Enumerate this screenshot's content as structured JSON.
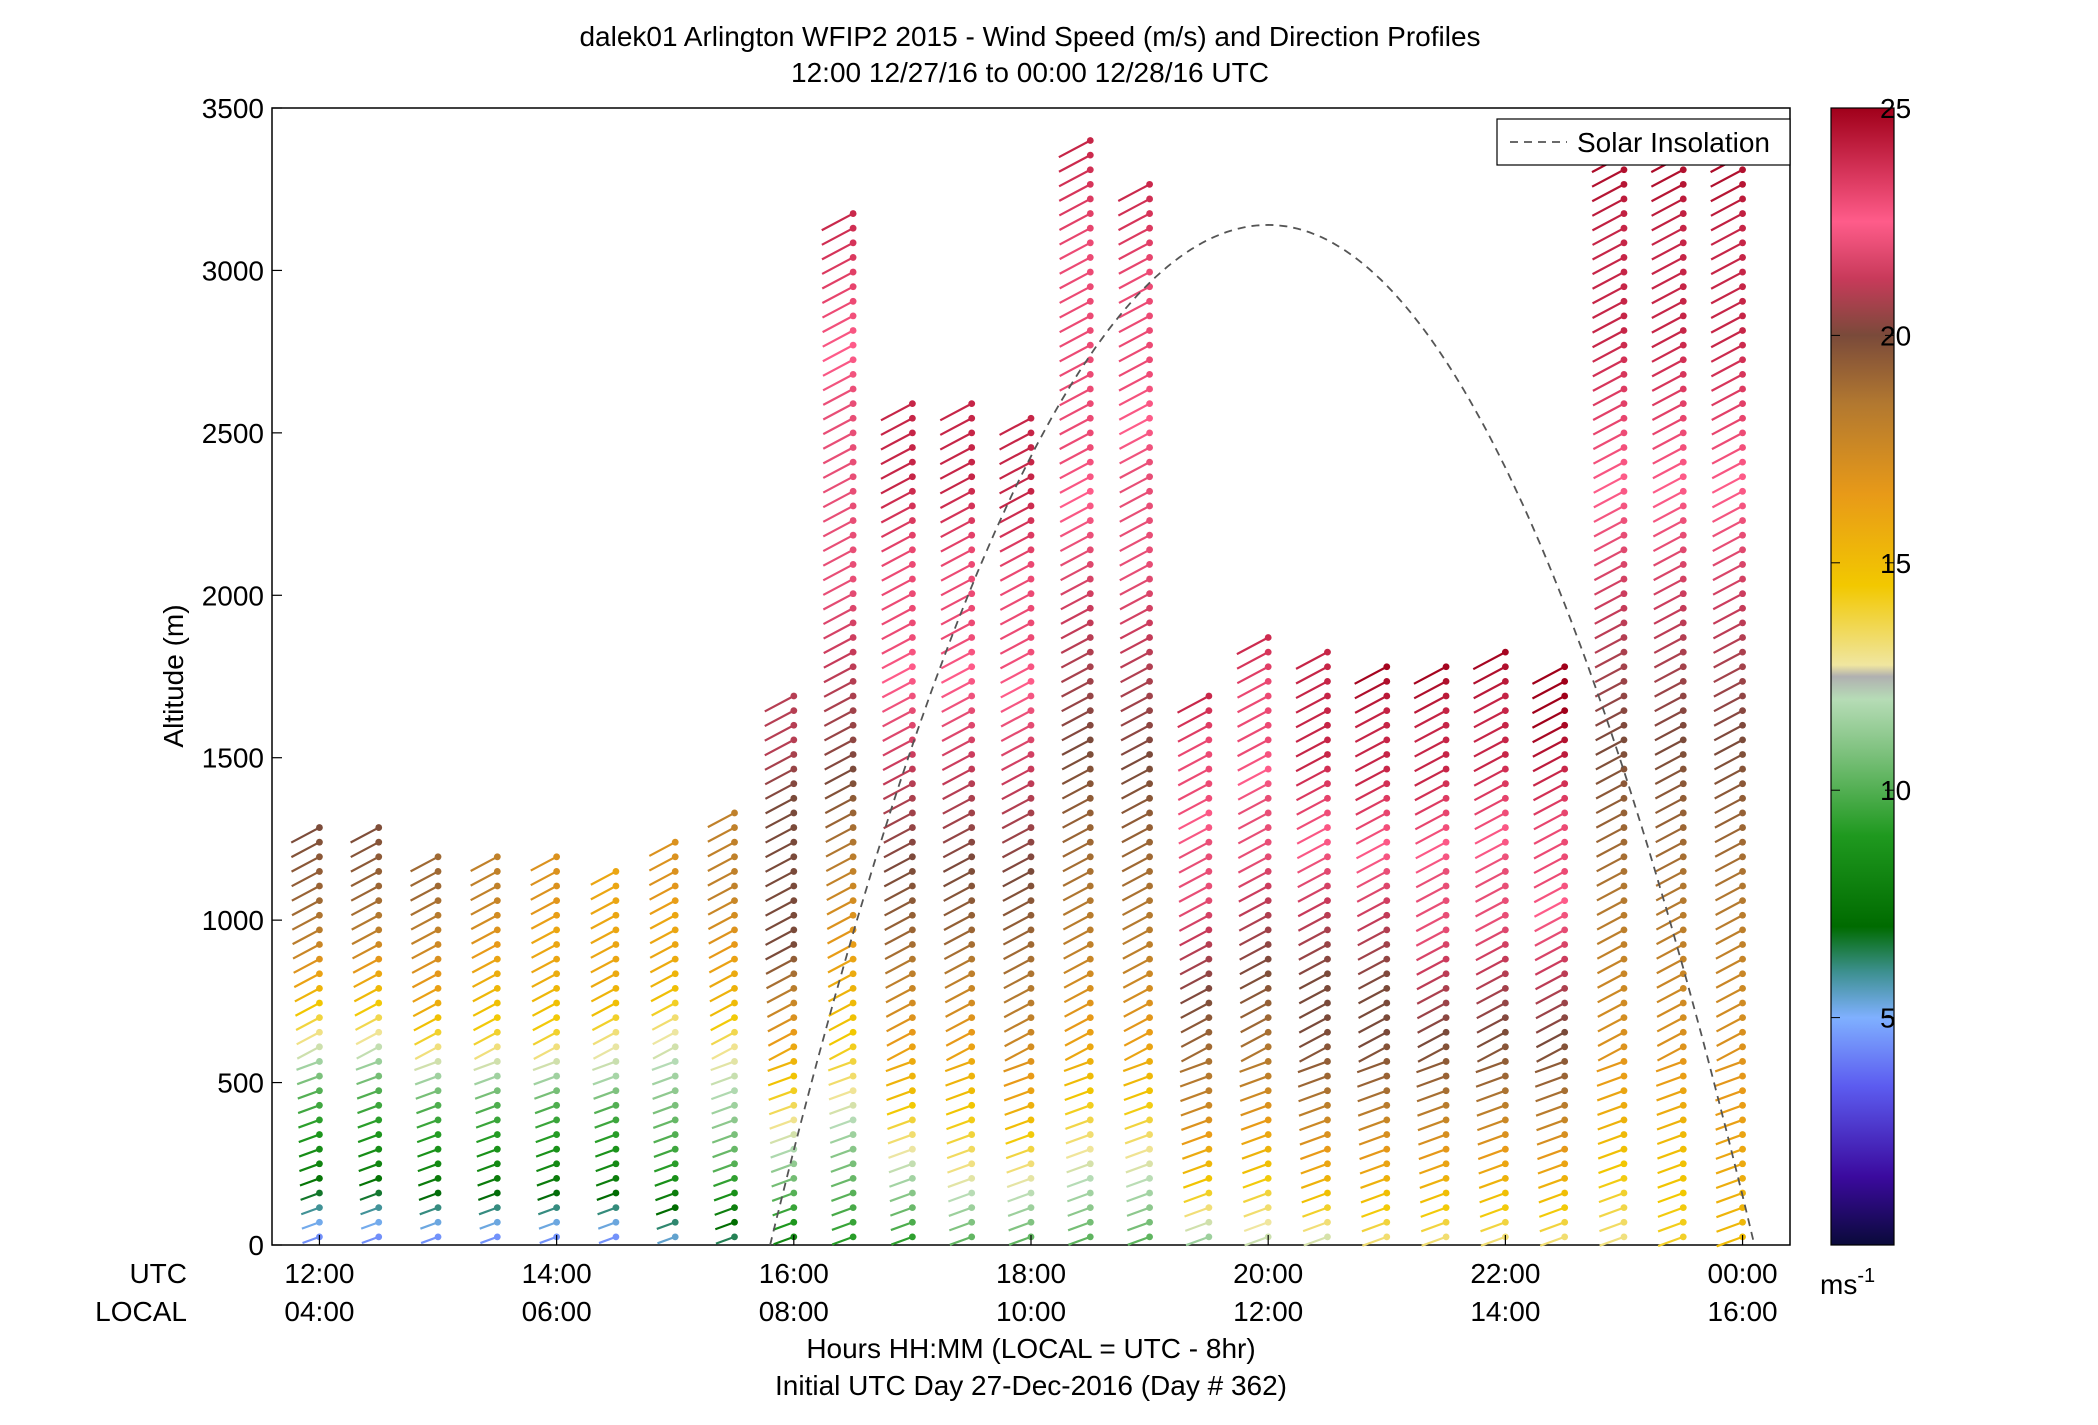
{
  "chart_data": {
    "type": "scatter",
    "title": "dalek01 Arlington WFIP2 2015 - Wind Speed (m/s) and Direction Profiles",
    "subtitle": "12:00 12/27/16 to 00:00 12/28/16  UTC",
    "ylabel": "Altitude (m)",
    "xlabel": "Hours HH:MM  (LOCAL = UTC - 8hr)",
    "xlabel2": "Initial UTC Day 27-Dec-2016 (Day # 362)",
    "utc_row_label": "UTC",
    "local_row_label": "LOCAL",
    "xlim_hours": [
      11.6,
      24.4
    ],
    "ylim": [
      0,
      3500
    ],
    "y_ticks": [
      0,
      500,
      1000,
      1500,
      2000,
      2500,
      3000,
      3500
    ],
    "x_ticks": [
      {
        "hour": 12,
        "utc": "12:00",
        "local": "04:00"
      },
      {
        "hour": 14,
        "utc": "14:00",
        "local": "06:00"
      },
      {
        "hour": 16,
        "utc": "16:00",
        "local": "08:00"
      },
      {
        "hour": 18,
        "utc": "18:00",
        "local": "10:00"
      },
      {
        "hour": 20,
        "utc": "20:00",
        "local": "12:00"
      },
      {
        "hour": 22,
        "utc": "22:00",
        "local": "14:00"
      },
      {
        "hour": 24,
        "utc": "00:00",
        "local": "16:00"
      }
    ],
    "legend": {
      "label": "Solar Insolation",
      "placement": "top-right"
    },
    "colorbar": {
      "min": 0,
      "max": 25,
      "ticks": [
        5,
        10,
        15,
        20,
        25
      ],
      "unit": "ms-1"
    },
    "solar_insolation": {
      "sunrise_hour": 15.8,
      "peak_hour": 20.0,
      "sunset_hour": 24.1,
      "peak_altitude_m": 3140
    },
    "profiles": [
      {
        "hour": 12.0,
        "top": 1300,
        "speeds": [
          4,
          6,
          8,
          9,
          10,
          12,
          14,
          16,
          18,
          19,
          19.5,
          20
        ]
      },
      {
        "hour": 12.5,
        "top": 1320,
        "speeds": [
          4,
          6,
          8,
          9,
          10,
          12,
          14,
          16,
          18,
          19,
          19.5,
          20
        ]
      },
      {
        "hour": 13.0,
        "top": 1200,
        "speeds": [
          4,
          6,
          8,
          9,
          10,
          12,
          14,
          16,
          17,
          18,
          19,
          19
        ]
      },
      {
        "hour": 13.5,
        "top": 1200,
        "speeds": [
          4,
          6,
          8,
          9,
          10,
          12,
          14,
          15,
          16,
          17,
          18,
          18
        ]
      },
      {
        "hour": 14.0,
        "top": 1200,
        "speeds": [
          4,
          6,
          8,
          9,
          10,
          12,
          14,
          15,
          16,
          16,
          17,
          17
        ]
      },
      {
        "hour": 14.5,
        "top": 1180,
        "speeds": [
          4,
          6,
          8,
          9,
          10,
          12,
          13,
          15,
          16,
          16,
          16,
          16
        ]
      },
      {
        "hour": 15.0,
        "top": 1250,
        "speeds": [
          5,
          7,
          9,
          10,
          11,
          12,
          13,
          15,
          16,
          16,
          17,
          17
        ]
      },
      {
        "hour": 15.5,
        "top": 1350,
        "speeds": [
          6,
          8,
          10,
          11,
          12,
          13,
          15,
          16,
          17,
          18,
          18,
          18
        ]
      },
      {
        "hour": 16.0,
        "top": 1700,
        "speeds": [
          8,
          10,
          12,
          14,
          16,
          18,
          20,
          20,
          20,
          20,
          21,
          21
        ]
      },
      {
        "hour": 16.5,
        "top": 3200,
        "speeds": [
          9,
          11,
          14,
          16,
          18,
          20,
          21,
          22,
          22,
          22,
          23,
          24
        ]
      },
      {
        "hour": 17.0,
        "top": 2600,
        "speeds": [
          9,
          12,
          15,
          17,
          19,
          20,
          21,
          22,
          23,
          23,
          24,
          24
        ]
      },
      {
        "hour": 17.5,
        "top": 2600,
        "speeds": [
          10,
          13,
          15,
          17,
          19,
          20,
          21,
          22,
          23,
          23,
          24,
          24
        ]
      },
      {
        "hour": 18.0,
        "top": 2550,
        "speeds": [
          10,
          13,
          16,
          18,
          19,
          20,
          21,
          22,
          23,
          23,
          24,
          24
        ]
      },
      {
        "hour": 18.5,
        "top": 3400,
        "speeds": [
          10,
          13,
          16,
          18,
          19,
          20,
          21,
          22,
          23,
          23,
          23,
          24
        ]
      },
      {
        "hour": 19.0,
        "top": 3300,
        "speeds": [
          10,
          13,
          16,
          18,
          19,
          20,
          21,
          22,
          22,
          23,
          23,
          24
        ]
      },
      {
        "hour": 19.5,
        "top": 1700,
        "speeds": [
          11,
          14,
          16,
          18,
          19,
          20,
          21,
          22,
          22,
          23,
          23,
          24
        ]
      },
      {
        "hour": 20.0,
        "top": 1900,
        "speeds": [
          12,
          14,
          16,
          18,
          19,
          20,
          21,
          22,
          22,
          23,
          23,
          24
        ]
      },
      {
        "hour": 20.5,
        "top": 1850,
        "speeds": [
          12,
          15,
          17,
          19,
          20,
          20,
          21,
          22,
          23,
          24,
          24,
          24
        ]
      },
      {
        "hour": 21.0,
        "top": 1800,
        "speeds": [
          13,
          15,
          17,
          19,
          20,
          20,
          21,
          22,
          23,
          24,
          24,
          25
        ]
      },
      {
        "hour": 21.5,
        "top": 1800,
        "speeds": [
          13,
          15,
          17,
          19,
          20,
          21,
          22,
          22,
          23,
          24,
          24,
          25
        ]
      },
      {
        "hour": 22.0,
        "top": 1850,
        "speeds": [
          13,
          15,
          17,
          19,
          20,
          21,
          22,
          22,
          23,
          24,
          24,
          25
        ]
      },
      {
        "hour": 22.5,
        "top": 1800,
        "speeds": [
          13,
          15,
          17,
          19,
          20,
          21,
          22,
          23,
          23,
          24,
          25,
          25
        ]
      },
      {
        "hour": 23.0,
        "top": 3450,
        "speeds": [
          13,
          15,
          17,
          18,
          19,
          20,
          21,
          22,
          23,
          24,
          24,
          25
        ]
      },
      {
        "hour": 23.5,
        "top": 3450,
        "speeds": [
          14,
          15,
          17,
          18,
          19,
          20,
          21,
          22,
          23,
          24,
          24,
          25
        ]
      },
      {
        "hour": 24.0,
        "top": 3450,
        "speeds": [
          15,
          16,
          17,
          18,
          19,
          20,
          21,
          22,
          23,
          24,
          24,
          25
        ]
      }
    ]
  }
}
